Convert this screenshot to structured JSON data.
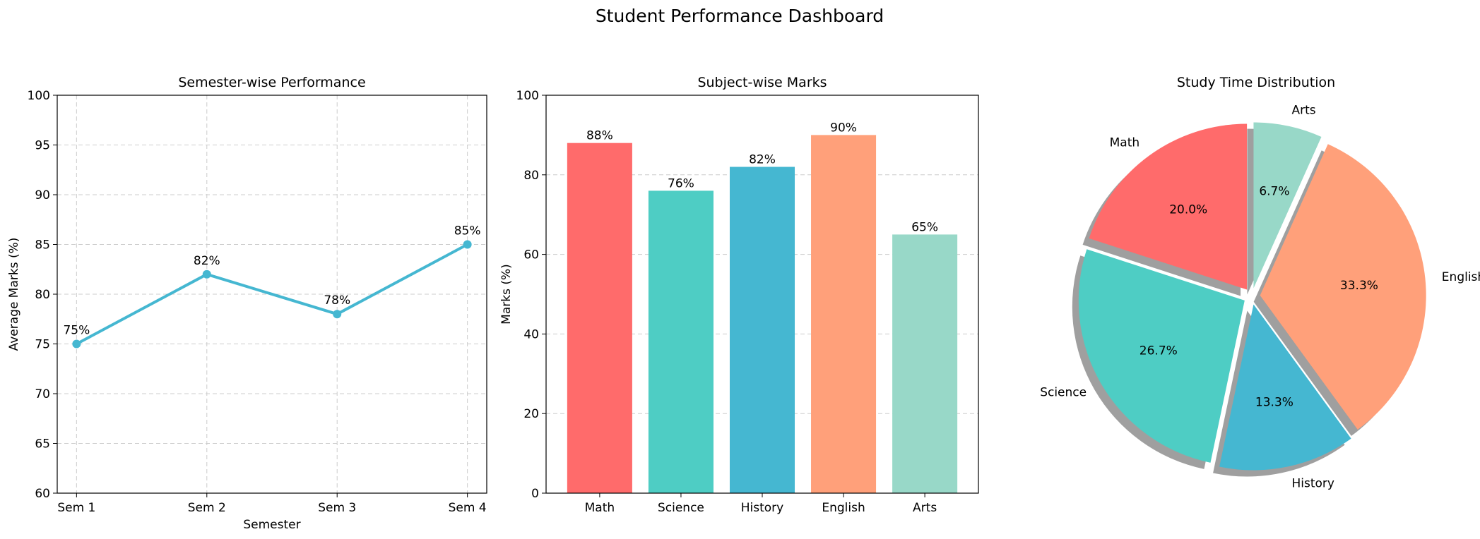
{
  "suptitle": "Student Performance Dashboard",
  "chart_data": [
    {
      "type": "line",
      "title": "Semester-wise Performance",
      "xlabel": "Semester",
      "ylabel": "Average Marks (%)",
      "categories": [
        "Sem 1",
        "Sem 2",
        "Sem 3",
        "Sem 4"
      ],
      "values": [
        75,
        82,
        78,
        85
      ],
      "data_labels": [
        "75%",
        "82%",
        "78%",
        "85%"
      ],
      "ylim": [
        60,
        100
      ],
      "yticks": [
        60,
        65,
        70,
        75,
        80,
        85,
        90,
        95,
        100
      ],
      "grid": true,
      "grid_axes": "both",
      "color": "#45B7D1"
    },
    {
      "type": "bar",
      "title": "Subject-wise Marks",
      "xlabel": "",
      "ylabel": "Marks (%)",
      "categories": [
        "Math",
        "Science",
        "History",
        "English",
        "Arts"
      ],
      "values": [
        88,
        76,
        82,
        90,
        65
      ],
      "data_labels": [
        "88%",
        "76%",
        "82%",
        "90%",
        "65%"
      ],
      "ylim": [
        0,
        100
      ],
      "yticks": [
        0,
        20,
        40,
        60,
        80,
        100
      ],
      "grid": true,
      "grid_axes": "y",
      "colors": [
        "#FF6B6B",
        "#4ECDC4",
        "#45B7D1",
        "#FFA07A",
        "#98D8C8"
      ]
    },
    {
      "type": "pie",
      "title": "Study Time Distribution",
      "labels": [
        "Math",
        "Science",
        "History",
        "English",
        "Arts"
      ],
      "values": [
        20.0,
        26.7,
        13.3,
        33.3,
        6.7
      ],
      "pct_labels": [
        "20.0%",
        "26.7%",
        "13.3%",
        "33.3%",
        "6.7%"
      ],
      "colors": [
        "#FF6B6B",
        "#4ECDC4",
        "#45B7D1",
        "#FFA07A",
        "#98D8C8"
      ],
      "start_angle_deg": 90,
      "exploded": true,
      "shadow": true
    }
  ]
}
